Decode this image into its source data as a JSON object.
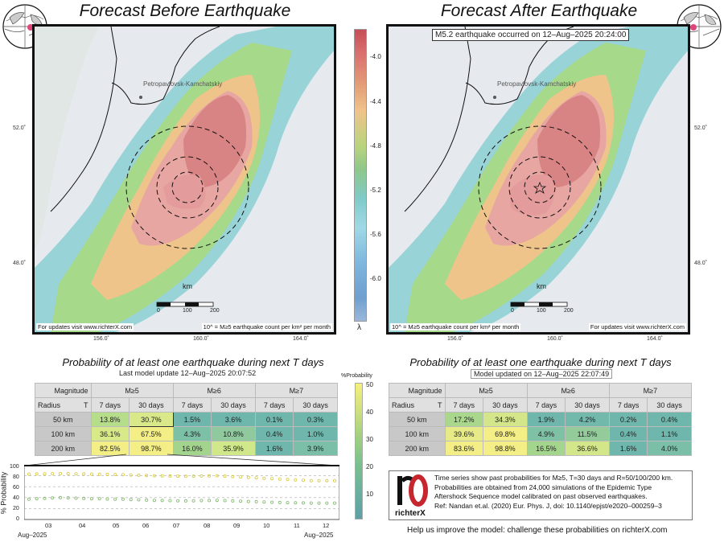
{
  "left_panel": {
    "title": "Forecast Before Earthquake",
    "city_label": "Petropavlovsk-Kamchatskiy",
    "km_label": "km",
    "scale_ticks": [
      "0",
      "100",
      "200"
    ],
    "footer_left": "For updates visit www.richterX.com",
    "footer_right": "10^ = M≥5 earthquake count per km² per month"
  },
  "right_panel": {
    "title": "Forecast After Earthquake",
    "banner": "M5.2 earthquake occurred on 12–Aug–2025 20:24:00",
    "city_label": "Petropavlovsk-Kamchatskiy",
    "km_label": "km",
    "scale_ticks": [
      "0",
      "100",
      "200"
    ],
    "footer_left": "10^ = M≥5 earthquake count per km² per month",
    "footer_right": "For updates visit www.richterX.com"
  },
  "lat_labels": [
    "52.0˚",
    "48.0˚"
  ],
  "lon_labels": [
    "156.0˚",
    "160.0˚",
    "164.0˚"
  ],
  "colorbar": {
    "ticks": [
      "-4.0",
      "-4.4",
      "-4.8",
      "-5.2",
      "-5.6",
      "-6.0"
    ],
    "symbol": "λ"
  },
  "prob_colorbar": {
    "title": "%Probability",
    "ticks": [
      "50",
      "40",
      "30",
      "20",
      "10"
    ]
  },
  "before_table": {
    "title": "Probability of at least one earthquake during next T days",
    "subtitle": "Last model update 12–Aug–2025 20:07:52",
    "magnitude_label": "Magnitude",
    "radius_label": "Radius",
    "t_label": "T",
    "magnitudes": [
      "M≥5",
      "M≥6",
      "M≥7"
    ],
    "periods": [
      "7 days",
      "30 days",
      "7 days",
      "30 days",
      "7 days",
      "30 days"
    ],
    "rows": [
      {
        "radius": "50 km",
        "values": [
          "13.8%",
          "30.7%",
          "1.5%",
          "3.6%",
          "0.1%",
          "0.3%"
        ]
      },
      {
        "radius": "100 km",
        "values": [
          "36.1%",
          "67.5%",
          "4.3%",
          "10.8%",
          "0.4%",
          "1.0%"
        ]
      },
      {
        "radius": "200 km",
        "values": [
          "82.5%",
          "98.7%",
          "16.0%",
          "35.9%",
          "1.6%",
          "3.9%"
        ]
      }
    ]
  },
  "after_table": {
    "title": "Probability of at least one earthquake during next T days",
    "subtitle": "Model updated on 12–Aug–2025 22:07:49",
    "magnitude_label": "Magnitude",
    "radius_label": "Radius",
    "t_label": "T",
    "magnitudes": [
      "M≥5",
      "M≥6",
      "M≥7"
    ],
    "periods": [
      "7 days",
      "30 days",
      "7 days",
      "30 days",
      "7 days",
      "30 days"
    ],
    "rows": [
      {
        "radius": "50 km",
        "values": [
          "17.2%",
          "34.3%",
          "1.9%",
          "4.2%",
          "0.2%",
          "0.4%"
        ]
      },
      {
        "radius": "100 km",
        "values": [
          "39.6%",
          "69.8%",
          "4.9%",
          "11.5%",
          "0.4%",
          "1.1%"
        ]
      },
      {
        "radius": "200 km",
        "values": [
          "83.6%",
          "98.8%",
          "16.5%",
          "36.6%",
          "1.6%",
          "4.0%"
        ]
      }
    ]
  },
  "timeseries": {
    "ylabel": "% Probability",
    "yticks": [
      "100",
      "80",
      "60",
      "40",
      "20",
      "0"
    ],
    "xticks": [
      "03",
      "04",
      "05",
      "06",
      "07",
      "08",
      "09",
      "10",
      "11",
      "12"
    ],
    "x_start_label": "Aug–2025",
    "x_end_label": "Aug–2025"
  },
  "chart_data": {
    "type": "line",
    "ylabel": "% Probability",
    "ylim": [
      0,
      100
    ],
    "x": [
      "03",
      "04",
      "05",
      "06",
      "07",
      "08",
      "09",
      "10",
      "11",
      "12"
    ],
    "series": [
      {
        "values": [
          83,
          84,
          83,
          82,
          80,
          79,
          80,
          77,
          74,
          71
        ]
      },
      {
        "values": [
          37,
          40,
          38,
          37,
          35,
          34,
          35,
          33,
          31,
          30
        ]
      }
    ]
  },
  "info": {
    "lines": [
      "Time series show past probabilities for M≥5, T=30 days and R=50/100/200 km.",
      "Probabilities are obtained from 24,000 simulations of the Epidemic Type",
      "Aftershock Sequence model calibrated on past observed earthquakes.",
      "Ref: Nandan et.al. (2020) Eur. Phys. J, doi: 10.1140/epjst/e2020–000259–3"
    ],
    "logo_text": "richterX"
  },
  "help_text": "Help us improve the model: challenge these probabilities on richterX.com",
  "colors": {
    "high": "#c64f55",
    "mid": "#efc48b",
    "low": "#6e9fcf",
    "cell_yellow": "#f3ee86",
    "cell_green": "#a9d88c",
    "cell_teal": "#6fb7ac",
    "logo_red": "#c6262e"
  }
}
